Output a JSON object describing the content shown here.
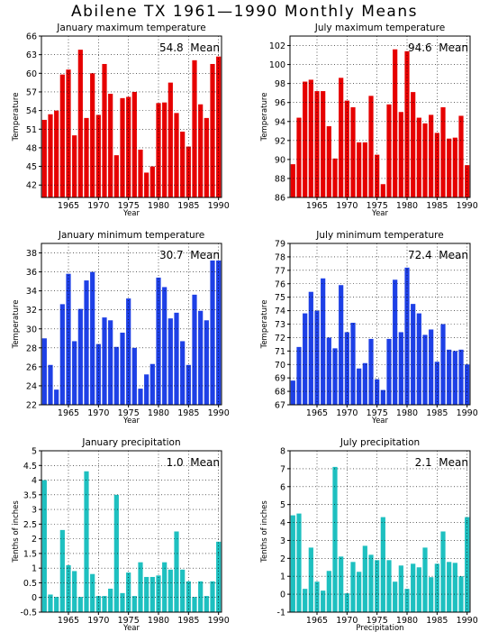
{
  "title": "Abilene TX   1961—1990  Monthly Means",
  "chart_data": [
    {
      "type": "bar",
      "title": "January maximum temperature",
      "xlabel": "Year",
      "ylabel": "Temperature",
      "color": "#e60000",
      "annotation": "54.8  Mean",
      "ylim": [
        40,
        66
      ],
      "yticks": [
        "42",
        "45",
        "48",
        "51",
        "54",
        "57",
        "60",
        "63",
        "66"
      ],
      "xticks": [
        "1965",
        "1970",
        "1975",
        "1980",
        "1985",
        "1990"
      ],
      "grid": true,
      "x": [
        1961,
        1962,
        1963,
        1964,
        1965,
        1966,
        1967,
        1968,
        1969,
        1970,
        1971,
        1972,
        1973,
        1974,
        1975,
        1976,
        1977,
        1978,
        1979,
        1980,
        1981,
        1982,
        1983,
        1984,
        1985,
        1986,
        1987,
        1988,
        1989,
        1990
      ],
      "values": [
        52.5,
        53.4,
        54.0,
        59.8,
        60.6,
        50.0,
        63.8,
        52.8,
        60.0,
        53.3,
        61.5,
        56.7,
        46.8,
        56.0,
        56.2,
        57.0,
        47.7,
        44.0,
        45.0,
        55.2,
        55.3,
        58.5,
        53.6,
        50.6,
        48.2,
        62.1,
        55.0,
        52.8,
        61.5,
        62.7
      ]
    },
    {
      "type": "bar",
      "title": "July maximum temperature",
      "xlabel": "Year",
      "ylabel": "Temperature",
      "color": "#e60000",
      "annotation": "94.6  Mean",
      "ylim": [
        86,
        103
      ],
      "yticks": [
        "86",
        "88",
        "90",
        "92",
        "94",
        "96",
        "98",
        "100",
        "102"
      ],
      "xticks": [
        "1965",
        "1970",
        "1975",
        "1980",
        "1985",
        "1990"
      ],
      "grid": true,
      "x": [
        1961,
        1962,
        1963,
        1964,
        1965,
        1966,
        1967,
        1968,
        1969,
        1970,
        1971,
        1972,
        1973,
        1974,
        1975,
        1976,
        1977,
        1978,
        1979,
        1980,
        1981,
        1982,
        1983,
        1984,
        1985,
        1986,
        1987,
        1988,
        1989,
        1990
      ],
      "values": [
        89.5,
        94.4,
        98.2,
        98.4,
        97.2,
        97.2,
        93.5,
        90.1,
        98.6,
        96.2,
        95.5,
        91.8,
        91.8,
        96.7,
        90.5,
        87.4,
        95.8,
        101.6,
        95.0,
        101.4,
        97.1,
        94.4,
        93.8,
        94.7,
        92.8,
        95.5,
        92.2,
        92.3,
        94.6,
        89.4
      ]
    },
    {
      "type": "bar",
      "title": "January minimum temperature",
      "xlabel": "Year",
      "ylabel": "Temperature",
      "color": "#1e40e6",
      "annotation": "30.7  Mean",
      "ylim": [
        22,
        39
      ],
      "yticks": [
        "22",
        "24",
        "26",
        "28",
        "30",
        "32",
        "34",
        "36",
        "38"
      ],
      "xticks": [
        "1965",
        "1970",
        "1975",
        "1980",
        "1985",
        "1990"
      ],
      "grid": true,
      "x": [
        1961,
        1962,
        1963,
        1964,
        1965,
        1966,
        1967,
        1968,
        1969,
        1970,
        1971,
        1972,
        1973,
        1974,
        1975,
        1976,
        1977,
        1978,
        1979,
        1980,
        1981,
        1982,
        1983,
        1984,
        1985,
        1986,
        1987,
        1988,
        1989,
        1990
      ],
      "values": [
        29.0,
        26.2,
        23.6,
        32.6,
        35.8,
        28.7,
        32.1,
        35.1,
        36.0,
        28.4,
        31.2,
        30.9,
        28.1,
        29.6,
        33.2,
        28.0,
        23.7,
        25.2,
        26.3,
        35.4,
        34.4,
        31.1,
        31.7,
        28.7,
        26.2,
        33.6,
        31.9,
        30.9,
        37.2,
        37.2
      ]
    },
    {
      "type": "bar",
      "title": "July minimum temperature",
      "xlabel": "Year",
      "ylabel": "Temperature",
      "color": "#1e40e6",
      "annotation": "72.4  Mean",
      "ylim": [
        67,
        79
      ],
      "yticks": [
        "67",
        "68",
        "69",
        "70",
        "71",
        "72",
        "73",
        "74",
        "75",
        "76",
        "77",
        "78",
        "79"
      ],
      "xticks": [
        "1965",
        "1970",
        "1975",
        "1980",
        "1985",
        "1990"
      ],
      "grid": true,
      "x": [
        1961,
        1962,
        1963,
        1964,
        1965,
        1966,
        1967,
        1968,
        1969,
        1970,
        1971,
        1972,
        1973,
        1974,
        1975,
        1976,
        1977,
        1978,
        1979,
        1980,
        1981,
        1982,
        1983,
        1984,
        1985,
        1986,
        1987,
        1988,
        1989,
        1990
      ],
      "values": [
        68.8,
        71.3,
        73.8,
        75.4,
        74.0,
        76.4,
        72.0,
        71.2,
        75.9,
        72.4,
        73.1,
        69.7,
        70.1,
        71.9,
        68.9,
        68.1,
        71.9,
        76.3,
        72.4,
        77.2,
        74.5,
        73.8,
        72.2,
        72.6,
        70.2,
        73.0,
        71.1,
        71.0,
        71.1,
        70.0
      ]
    },
    {
      "type": "bar",
      "title": "January precipitation",
      "xlabel": "Year",
      "ylabel": "Tenths of inches",
      "color": "#1ec0c0",
      "annotation": "1.0  Mean",
      "ylim": [
        -0.5,
        5
      ],
      "yticks": [
        "-0.5",
        "0",
        "0.5",
        "1",
        "1.5",
        "2",
        "2.5",
        "3",
        "3.5",
        "4",
        "4.5",
        "5"
      ],
      "xticks": [
        "1965",
        "1970",
        "1975",
        "1980",
        "1985",
        "1990"
      ],
      "grid": true,
      "x": [
        1961,
        1962,
        1963,
        1964,
        1965,
        1966,
        1967,
        1968,
        1969,
        1970,
        1971,
        1972,
        1973,
        1974,
        1975,
        1976,
        1977,
        1978,
        1979,
        1980,
        1981,
        1982,
        1983,
        1984,
        1985,
        1986,
        1987,
        1988,
        1989,
        1990
      ],
      "values": [
        4.0,
        0.1,
        0.02,
        2.3,
        1.1,
        0.9,
        0.02,
        4.3,
        0.8,
        0.05,
        0.05,
        0.3,
        3.5,
        0.15,
        0.85,
        0.05,
        1.2,
        0.7,
        0.7,
        0.75,
        1.2,
        0.95,
        2.25,
        0.95,
        0.55,
        0.02,
        0.55,
        0.05,
        0.55,
        1.9
      ]
    },
    {
      "type": "bar",
      "title": "July precipitation",
      "xlabel": "Precipitation",
      "ylabel": "Tenths of inches",
      "color": "#1ec0c0",
      "annotation": "2.1  Mean",
      "ylim": [
        -1,
        8
      ],
      "yticks": [
        "-1",
        "0",
        "1",
        "2",
        "3",
        "4",
        "5",
        "6",
        "7",
        "8"
      ],
      "xticks": [
        "1965",
        "1970",
        "1975",
        "1980",
        "1985",
        "1990"
      ],
      "grid": true,
      "x": [
        1961,
        1962,
        1963,
        1964,
        1965,
        1966,
        1967,
        1968,
        1969,
        1970,
        1971,
        1972,
        1973,
        1974,
        1975,
        1976,
        1977,
        1978,
        1979,
        1980,
        1981,
        1982,
        1983,
        1984,
        1985,
        1986,
        1987,
        1988,
        1989,
        1990
      ],
      "values": [
        4.4,
        4.5,
        0.3,
        2.6,
        0.7,
        0.2,
        1.3,
        7.1,
        2.1,
        0.05,
        1.8,
        1.25,
        2.7,
        2.2,
        1.9,
        4.3,
        1.9,
        0.7,
        1.6,
        0.3,
        1.7,
        1.5,
        2.6,
        0.95,
        1.7,
        3.5,
        1.8,
        1.75,
        1.0,
        4.3
      ]
    }
  ]
}
